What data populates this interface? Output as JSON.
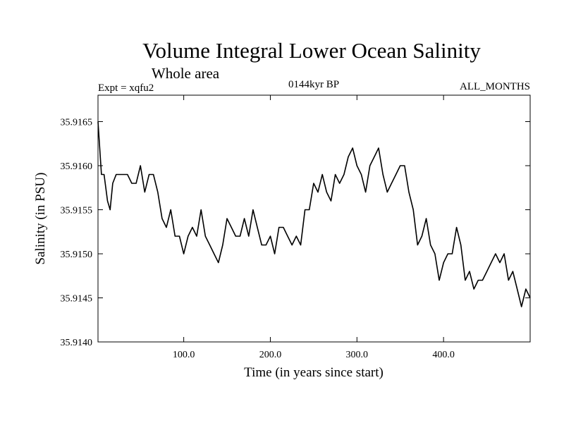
{
  "chart_data": {
    "type": "line",
    "title": "Volume Integral Lower Ocean Salinity",
    "subtitle": "Whole area",
    "experiment": "Expt = xqfu2",
    "period": "0144kyr BP",
    "months": "ALL_MONTHS",
    "xlabel": "Time (in years since start)",
    "ylabel": "Salinity (in PSU)",
    "xlim": [
      1,
      500
    ],
    "ylim": [
      35.914,
      35.9168
    ],
    "x_ticks": [
      100,
      200,
      300,
      400
    ],
    "x_tick_labels": [
      "100.0",
      "200.0",
      "300.0",
      "400.0"
    ],
    "y_ticks": [
      35.914,
      35.9145,
      35.915,
      35.9155,
      35.916,
      35.9165
    ],
    "y_tick_labels": [
      "35.9140",
      "35.9145",
      "35.9150",
      "35.9155",
      "35.9160",
      "35.9165"
    ],
    "line_color": "#000000",
    "series": [
      {
        "name": "Salinity",
        "x": [
          1,
          5,
          8,
          12,
          15,
          18,
          22,
          26,
          30,
          35,
          40,
          45,
          50,
          55,
          60,
          65,
          70,
          75,
          80,
          85,
          90,
          95,
          100,
          105,
          110,
          115,
          120,
          125,
          130,
          135,
          140,
          145,
          150,
          155,
          160,
          165,
          170,
          175,
          180,
          185,
          190,
          195,
          200,
          205,
          210,
          215,
          220,
          225,
          230,
          235,
          240,
          245,
          250,
          255,
          260,
          265,
          270,
          275,
          280,
          285,
          290,
          295,
          300,
          305,
          310,
          315,
          320,
          325,
          330,
          335,
          340,
          345,
          350,
          355,
          360,
          365,
          370,
          375,
          380,
          385,
          390,
          395,
          400,
          405,
          410,
          415,
          420,
          425,
          430,
          435,
          440,
          445,
          450,
          455,
          460,
          465,
          470,
          475,
          480,
          485,
          490,
          495,
          500
        ],
        "values": [
          35.9165,
          35.9159,
          35.9159,
          35.9156,
          35.9155,
          35.9158,
          35.9159,
          35.9159,
          35.9159,
          35.9159,
          35.9158,
          35.9158,
          35.916,
          35.9157,
          35.9159,
          35.9159,
          35.9157,
          35.9154,
          35.9153,
          35.9155,
          35.9152,
          35.9152,
          35.915,
          35.9152,
          35.9153,
          35.9152,
          35.9155,
          35.9152,
          35.9151,
          35.915,
          35.9149,
          35.9151,
          35.9154,
          35.9153,
          35.9152,
          35.9152,
          35.9154,
          35.9152,
          35.9155,
          35.9153,
          35.9151,
          35.9151,
          35.9152,
          35.915,
          35.9153,
          35.9153,
          35.9152,
          35.9151,
          35.9152,
          35.9151,
          35.9155,
          35.9155,
          35.9158,
          35.9157,
          35.9159,
          35.9157,
          35.9156,
          35.9159,
          35.9158,
          35.9159,
          35.9161,
          35.9162,
          35.916,
          35.9159,
          35.9157,
          35.916,
          35.9161,
          35.9162,
          35.9159,
          35.9157,
          35.9158,
          35.9159,
          35.916,
          35.916,
          35.9157,
          35.9155,
          35.9151,
          35.9152,
          35.9154,
          35.9151,
          35.915,
          35.9147,
          35.9149,
          35.915,
          35.915,
          35.9153,
          35.9151,
          35.9147,
          35.9148,
          35.9146,
          35.9147,
          35.9147,
          35.9148,
          35.9149,
          35.915,
          35.9149,
          35.915,
          35.9147,
          35.9148,
          35.9146,
          35.9144,
          35.9146,
          35.9145
        ]
      }
    ]
  }
}
